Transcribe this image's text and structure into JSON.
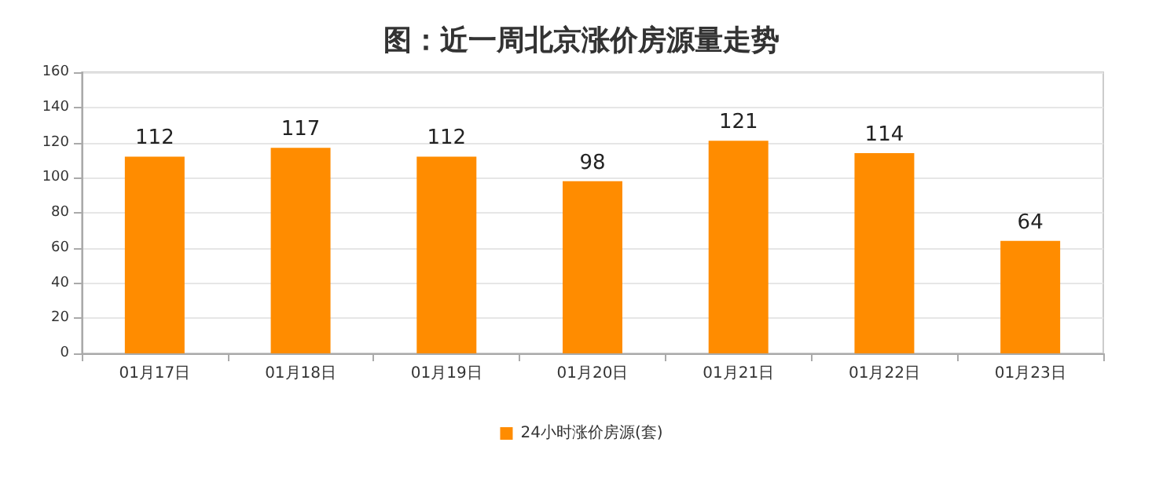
{
  "chart_data": {
    "type": "bar",
    "title": "图：近一周北京涨价房源量走势",
    "categories": [
      "01月17日",
      "01月18日",
      "01月19日",
      "01月20日",
      "01月21日",
      "01月22日",
      "01月23日"
    ],
    "series": [
      {
        "name": "24小时涨价房源(套)",
        "color": "#ff8c00",
        "values": [
          112,
          117,
          112,
          98,
          121,
          114,
          64
        ]
      }
    ],
    "ylim": [
      0,
      160
    ],
    "yticks": [
      0,
      20,
      40,
      60,
      80,
      100,
      120,
      140,
      160
    ],
    "grid": "y",
    "legend": "bottom",
    "data_labels": true
  }
}
